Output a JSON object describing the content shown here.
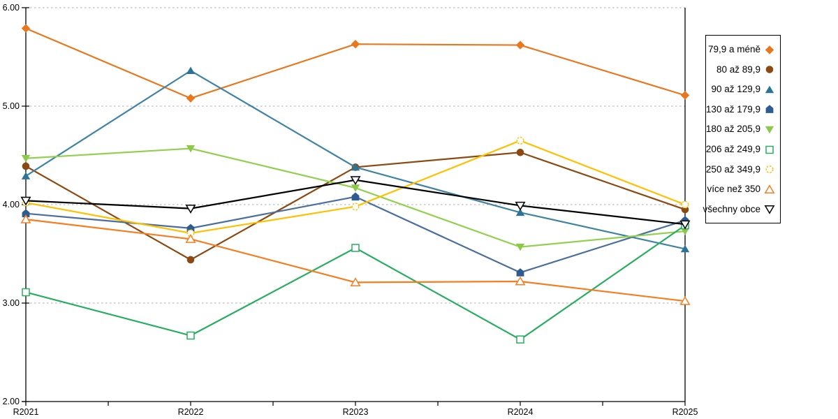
{
  "chart_data": {
    "type": "line",
    "title": "",
    "xlabel": "",
    "ylabel": "",
    "categories": [
      "R2021",
      "R2022",
      "R2023",
      "R2024",
      "R2025"
    ],
    "y_tick_labels": [
      "2.00",
      "3.00",
      "4.00",
      "5.00",
      "6.00"
    ],
    "y_ticks": [
      2,
      3,
      4,
      5,
      6
    ],
    "ylim": [
      2,
      6
    ],
    "grid": "horizontal-dotted",
    "grid_color": "#bdbdbd",
    "axis_color": "#000000",
    "legend_position": "right-outside",
    "series": [
      {
        "name": "79,9 a méně",
        "color": "#E8771E",
        "marker_color": "#E8771E",
        "marker": "diamond",
        "open": false,
        "dashed": false,
        "values": [
          5.79,
          5.08,
          5.63,
          5.62,
          5.11
        ]
      },
      {
        "name": "80 až 89,9",
        "color": "#8C4A12",
        "marker_color": "#8C4A12",
        "marker": "circle",
        "open": false,
        "dashed": false,
        "values": [
          4.39,
          3.44,
          4.38,
          4.53,
          3.95
        ]
      },
      {
        "name": "90 až 129,9",
        "color": "#3F84A2",
        "marker_color": "#2C7495",
        "marker": "triangle-up",
        "open": false,
        "dashed": false,
        "values": [
          4.29,
          5.36,
          4.38,
          3.92,
          3.55
        ]
      },
      {
        "name": "130 až 179,9",
        "color": "#4A6E9E",
        "marker_color": "#2F5C90",
        "marker": "pentagon",
        "open": false,
        "dashed": false,
        "values": [
          3.91,
          3.76,
          4.08,
          3.31,
          3.84
        ]
      },
      {
        "name": "180 až 205,9",
        "color": "#92D050",
        "marker_color": "#8CC94A",
        "marker": "triangle-down",
        "open": false,
        "dashed": false,
        "values": [
          4.47,
          4.57,
          4.17,
          3.57,
          3.73
        ]
      },
      {
        "name": "206 až 249,9",
        "color": "#27AE60",
        "marker_color": "#27AE60",
        "marker": "square",
        "open": true,
        "dashed": false,
        "values": [
          3.11,
          2.67,
          3.56,
          2.63,
          3.79
        ]
      },
      {
        "name": "250 až 349,9",
        "color": "#FFC000",
        "marker_color": "#FFC000",
        "marker": "circle",
        "open": true,
        "dashed": true,
        "values": [
          4.02,
          3.71,
          3.98,
          4.65,
          4.0
        ]
      },
      {
        "name": "více než 350",
        "color": "#F57E20",
        "marker_color": "#F57E20",
        "marker": "triangle-up",
        "open": true,
        "dashed": false,
        "values": [
          3.85,
          3.65,
          3.21,
          3.22,
          3.02
        ]
      },
      {
        "name": "všechny obce",
        "color": "#000000",
        "marker_color": "#000000",
        "marker": "triangle-down",
        "open": true,
        "dashed": false,
        "values": [
          4.04,
          3.96,
          4.25,
          3.99,
          3.8
        ]
      }
    ]
  }
}
